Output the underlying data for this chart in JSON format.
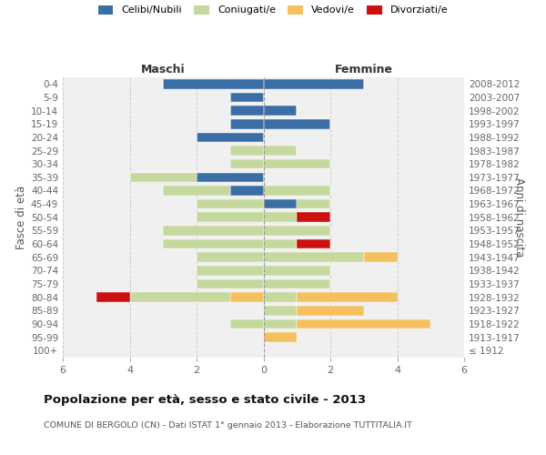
{
  "age_groups": [
    "100+",
    "95-99",
    "90-94",
    "85-89",
    "80-84",
    "75-79",
    "70-74",
    "65-69",
    "60-64",
    "55-59",
    "50-54",
    "45-49",
    "40-44",
    "35-39",
    "30-34",
    "25-29",
    "20-24",
    "15-19",
    "10-14",
    "5-9",
    "0-4"
  ],
  "birth_years": [
    "≤ 1912",
    "1913-1917",
    "1918-1922",
    "1923-1927",
    "1928-1932",
    "1933-1937",
    "1938-1942",
    "1943-1947",
    "1948-1952",
    "1953-1957",
    "1958-1962",
    "1963-1967",
    "1968-1972",
    "1973-1977",
    "1978-1982",
    "1983-1987",
    "1988-1992",
    "1993-1997",
    "1998-2002",
    "2003-2007",
    "2008-2012"
  ],
  "colors": {
    "celibi": "#3a6ea5",
    "coniugati": "#c5d89d",
    "vedovi": "#f5c060",
    "divorziati": "#cc1010"
  },
  "maschi": {
    "celibi": [
      0,
      0,
      0,
      0,
      0,
      0,
      0,
      0,
      0,
      0,
      0,
      0,
      1,
      2,
      0,
      0,
      2,
      1,
      1,
      1,
      3
    ],
    "coniugati": [
      0,
      0,
      1,
      0,
      3,
      2,
      2,
      2,
      3,
      3,
      2,
      2,
      2,
      2,
      1,
      1,
      0,
      0,
      0,
      0,
      0
    ],
    "vedovi": [
      0,
      0,
      0,
      0,
      1,
      0,
      0,
      0,
      0,
      0,
      0,
      0,
      0,
      0,
      0,
      0,
      0,
      0,
      0,
      0,
      0
    ],
    "divorziati": [
      0,
      0,
      0,
      0,
      1,
      0,
      0,
      0,
      0,
      0,
      0,
      0,
      0,
      0,
      0,
      0,
      0,
      0,
      0,
      0,
      0
    ]
  },
  "femmine": {
    "celibi": [
      0,
      0,
      0,
      0,
      0,
      0,
      0,
      0,
      0,
      0,
      0,
      1,
      0,
      0,
      0,
      0,
      0,
      2,
      1,
      0,
      3
    ],
    "coniugati": [
      0,
      0,
      1,
      1,
      1,
      2,
      2,
      3,
      1,
      2,
      1,
      1,
      2,
      0,
      2,
      1,
      0,
      0,
      0,
      0,
      0
    ],
    "vedovi": [
      0,
      1,
      4,
      2,
      3,
      0,
      0,
      1,
      0,
      0,
      0,
      0,
      0,
      0,
      0,
      0,
      0,
      0,
      0,
      0,
      0
    ],
    "divorziati": [
      0,
      0,
      0,
      0,
      0,
      0,
      0,
      0,
      1,
      0,
      1,
      0,
      0,
      0,
      0,
      0,
      0,
      0,
      0,
      0,
      0
    ]
  },
  "xlim": 6,
  "title": "Popolazione per età, sesso e stato civile - 2013",
  "subtitle": "COMUNE DI BERGOLO (CN) - Dati ISTAT 1° gennaio 2013 - Elaborazione TUTTITALIA.IT",
  "ylabel_left": "Fasce di età",
  "ylabel_right": "Anni di nascita",
  "xlabel_maschi": "Maschi",
  "xlabel_femmine": "Femmine",
  "legend_labels": [
    "Celibi/Nubili",
    "Coniugati/e",
    "Vedovi/e",
    "Divorziati/e"
  ],
  "bg_color": "#f0f0f0",
  "grid_color": "#cccccc"
}
